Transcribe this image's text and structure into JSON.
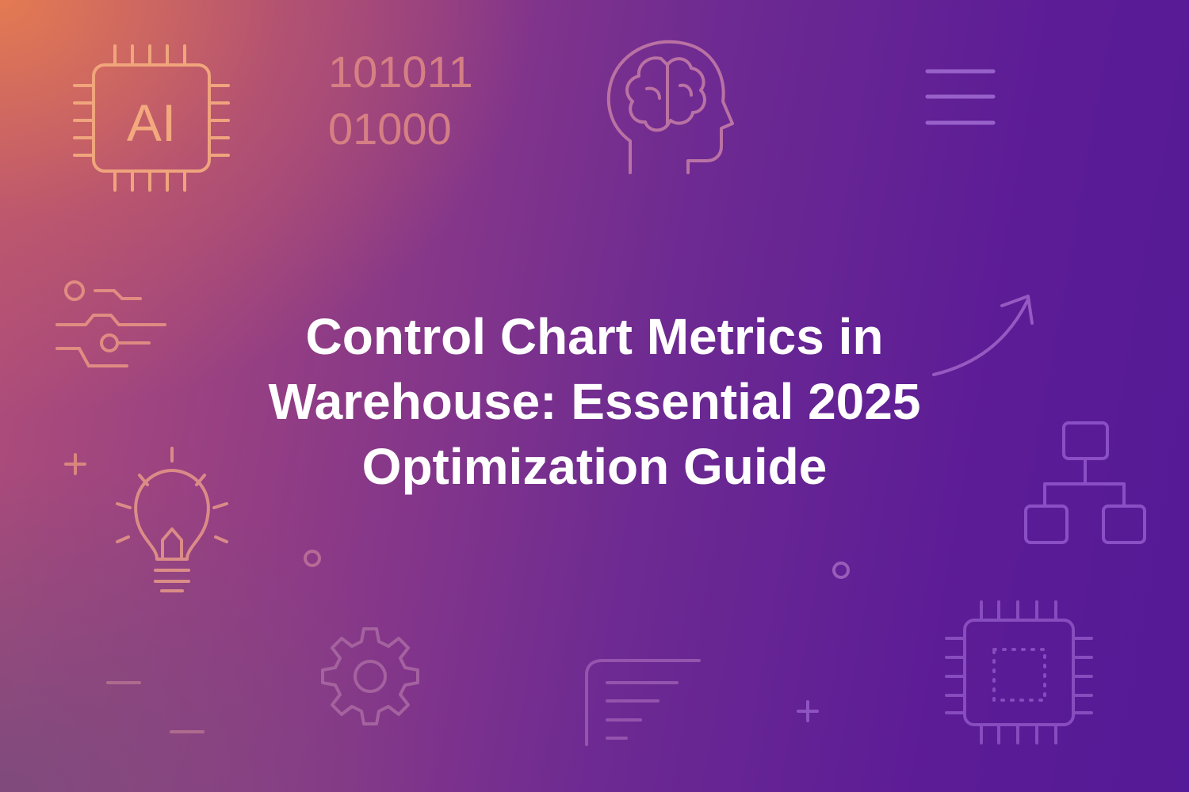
{
  "hero": {
    "title_lines": [
      "Control Chart Metrics in",
      "Warehouse: Essential 2025",
      "Optimization Guide"
    ]
  },
  "decorations": {
    "chip_label": "AI",
    "binary_lines": [
      "101011",
      "01000"
    ],
    "icons": [
      "ai-chip-icon",
      "binary-code-icon",
      "brain-head-icon",
      "menu-lines-icon",
      "sliders-icon",
      "trend-arrow-icon",
      "org-chart-icon",
      "plus-icon",
      "lightbulb-icon",
      "circle-icon",
      "gear-icon",
      "document-lines-icon",
      "minus-icon",
      "processor-chip-icon"
    ],
    "colors": {
      "accent_warm": "#f2a77d",
      "accent_cool": "#9a63d6",
      "text": "#ffffff"
    }
  }
}
